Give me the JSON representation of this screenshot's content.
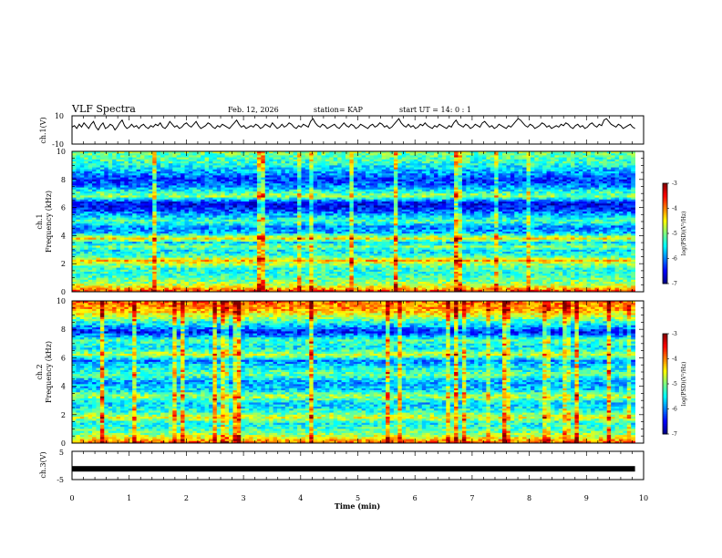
{
  "header": {
    "title": "VLF Spectra",
    "date": "Feb. 12, 2026",
    "station": "station= KAP",
    "start": "start  UT =   14: 0  : 1"
  },
  "chart_data": [
    {
      "type": "line",
      "name": "ch1-waveform",
      "ylabel": "ch.1(V)",
      "ylim": [
        -10,
        10
      ],
      "yticks": [
        "10",
        "-10"
      ],
      "xlim": [
        0,
        10
      ],
      "x_end": 9.85,
      "samples": [
        2,
        3,
        1,
        4,
        2,
        5,
        3,
        1,
        4,
        6,
        2,
        0,
        3,
        5,
        1,
        2,
        4,
        3,
        0,
        2,
        5,
        7,
        3,
        1,
        2,
        4,
        2,
        3,
        1,
        3,
        4,
        2,
        1,
        3,
        2,
        4,
        3,
        5,
        2,
        1,
        3,
        6,
        4,
        2,
        3,
        1,
        2,
        4,
        5,
        3,
        2,
        4,
        6,
        3,
        1,
        2,
        3,
        5,
        4,
        2,
        1,
        3,
        2,
        4,
        3,
        2,
        1,
        3,
        5,
        7,
        4,
        2,
        3,
        1,
        2,
        3,
        2,
        4,
        3,
        1,
        2,
        4,
        3,
        2,
        5,
        3,
        1,
        2,
        4,
        2,
        3,
        5,
        4,
        2,
        1,
        3,
        2,
        4,
        3,
        2,
        6,
        8,
        5,
        3,
        2,
        4,
        3,
        1,
        2,
        3,
        4,
        2,
        1,
        3,
        5,
        3,
        2,
        4,
        3,
        1,
        2,
        4,
        3,
        2,
        1,
        3,
        4,
        2,
        3,
        5,
        4,
        2,
        3,
        1,
        2,
        4,
        6,
        8,
        5,
        3,
        2,
        4,
        2,
        3,
        1,
        2,
        4,
        3,
        5,
        3,
        2,
        1,
        3,
        2,
        4,
        3,
        2,
        1,
        3,
        2,
        5,
        7,
        4,
        3,
        2,
        4,
        3,
        1,
        2,
        4,
        3,
        2,
        5,
        6,
        4,
        2,
        3,
        1,
        2,
        4,
        3,
        2,
        1,
        3,
        2,
        4,
        6,
        8,
        7,
        5,
        3,
        2,
        4,
        3,
        1,
        2,
        3,
        5,
        4,
        2,
        3,
        1,
        2,
        3,
        2,
        4,
        3,
        5,
        4,
        2,
        1,
        3,
        4,
        2,
        3,
        1,
        2,
        4,
        5,
        3,
        2,
        4,
        3,
        7,
        8,
        6,
        4,
        3,
        2,
        4,
        3,
        1,
        2,
        3,
        4,
        2,
        1
      ]
    },
    {
      "type": "heatmap",
      "name": "ch2-spectrogram",
      "ylabel": "ch.1",
      "ylabel2": "Frequency (kHz)",
      "ylim": [
        0,
        10
      ],
      "xlim": [
        0,
        10
      ],
      "x_end": 9.85,
      "yticks": [
        "0",
        "2",
        "4",
        "6",
        "8",
        "10"
      ],
      "freq_levels": [
        [
          0.0,
          -3.6
        ],
        [
          0.3,
          -4.4
        ],
        [
          0.6,
          -4.9
        ],
        [
          1.0,
          -5.2
        ],
        [
          1.6,
          -5.4
        ],
        [
          2.0,
          -4.8
        ],
        [
          2.2,
          -4.2
        ],
        [
          2.5,
          -5.2
        ],
        [
          2.9,
          -5.6
        ],
        [
          3.2,
          -5.0
        ],
        [
          3.5,
          -5.6
        ],
        [
          3.8,
          -4.4
        ],
        [
          4.2,
          -5.8
        ],
        [
          4.6,
          -6.0
        ],
        [
          5.0,
          -5.2
        ],
        [
          5.4,
          -5.7
        ],
        [
          5.9,
          -6.4
        ],
        [
          6.3,
          -6.6
        ],
        [
          6.8,
          -4.9
        ],
        [
          7.2,
          -5.5
        ],
        [
          7.6,
          -6.1
        ],
        [
          8.0,
          -6.3
        ],
        [
          8.6,
          -5.8
        ],
        [
          9.2,
          -5.3
        ],
        [
          10.0,
          -5.0
        ]
      ],
      "vertical_activity": 0.45,
      "colorbar": {
        "label": "log(PSD)(V²/Hz)",
        "ticks": [
          "-3",
          "-4",
          "-5",
          "-6",
          "-7"
        ],
        "range": [
          -7,
          -3
        ]
      }
    },
    {
      "type": "heatmap",
      "name": "ch3-spectrogram",
      "ylabel": "ch.2",
      "ylabel2": "Frequency (kHz)",
      "ylim": [
        0,
        10
      ],
      "xlim": [
        0,
        10
      ],
      "x_end": 9.85,
      "yticks": [
        "0",
        "2",
        "4",
        "6",
        "8",
        "10"
      ],
      "freq_levels": [
        [
          0.0,
          -3.8
        ],
        [
          0.4,
          -4.6
        ],
        [
          0.8,
          -5.1
        ],
        [
          1.4,
          -5.5
        ],
        [
          1.8,
          -4.6
        ],
        [
          2.2,
          -5.3
        ],
        [
          2.8,
          -5.7
        ],
        [
          3.3,
          -4.8
        ],
        [
          3.7,
          -5.6
        ],
        [
          4.3,
          -5.9
        ],
        [
          4.8,
          -5.1
        ],
        [
          5.3,
          -5.5
        ],
        [
          5.8,
          -6.0
        ],
        [
          6.2,
          -4.7
        ],
        [
          6.7,
          -5.6
        ],
        [
          7.2,
          -5.2
        ],
        [
          7.8,
          -6.4
        ],
        [
          8.3,
          -5.7
        ],
        [
          8.8,
          -4.9
        ],
        [
          9.3,
          -4.2
        ],
        [
          10.0,
          -3.9
        ]
      ],
      "vertical_activity": 0.7,
      "colorbar": {
        "label": "log(PSD)(V²/Hz)",
        "ticks": [
          "-3",
          "-4",
          "-5",
          "-6",
          "-7"
        ],
        "range": [
          -7,
          -3
        ]
      }
    },
    {
      "type": "line",
      "name": "ch3-waveform",
      "ylabel": "ch.3(V)",
      "ylim": [
        -5,
        5
      ],
      "yticks": [
        "5",
        "-5"
      ],
      "xlim": [
        0,
        10
      ],
      "x_end": 9.85,
      "value": -1.2
    }
  ],
  "xaxis": {
    "label": "Time  (min)",
    "ticks": [
      "0",
      "1",
      "2",
      "3",
      "4",
      "5",
      "6",
      "7",
      "8",
      "9",
      "10"
    ],
    "range": [
      0,
      10
    ]
  }
}
